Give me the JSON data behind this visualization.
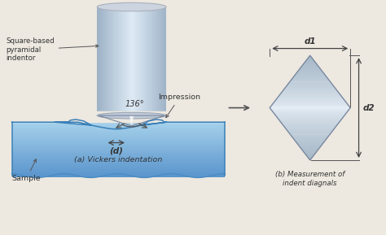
{
  "bg_color": "#ede8e0",
  "labels": {
    "square_based": "Square-based\npyramidal\nindentor",
    "angle": "136°",
    "d_label": "(d)",
    "vickers": "(a) Vickers indentation",
    "impression": "Impression",
    "sample": "Sample",
    "d1": "d1",
    "d2": "d2",
    "measurement": "(b) Measurement of\nindent diagnals"
  },
  "colors": {
    "cylinder_light": "#d8dfe8",
    "cylinder_dark": "#8898a8",
    "cylinder_highlight": "#eef2f8",
    "sample_light": "#a8cce0",
    "sample_dark": "#5588b8",
    "diamond_light": "#eef2f4",
    "diamond_dark": "#8898a8",
    "arrow_color": "#444444",
    "text_color": "#333333",
    "line_color": "#555555"
  }
}
